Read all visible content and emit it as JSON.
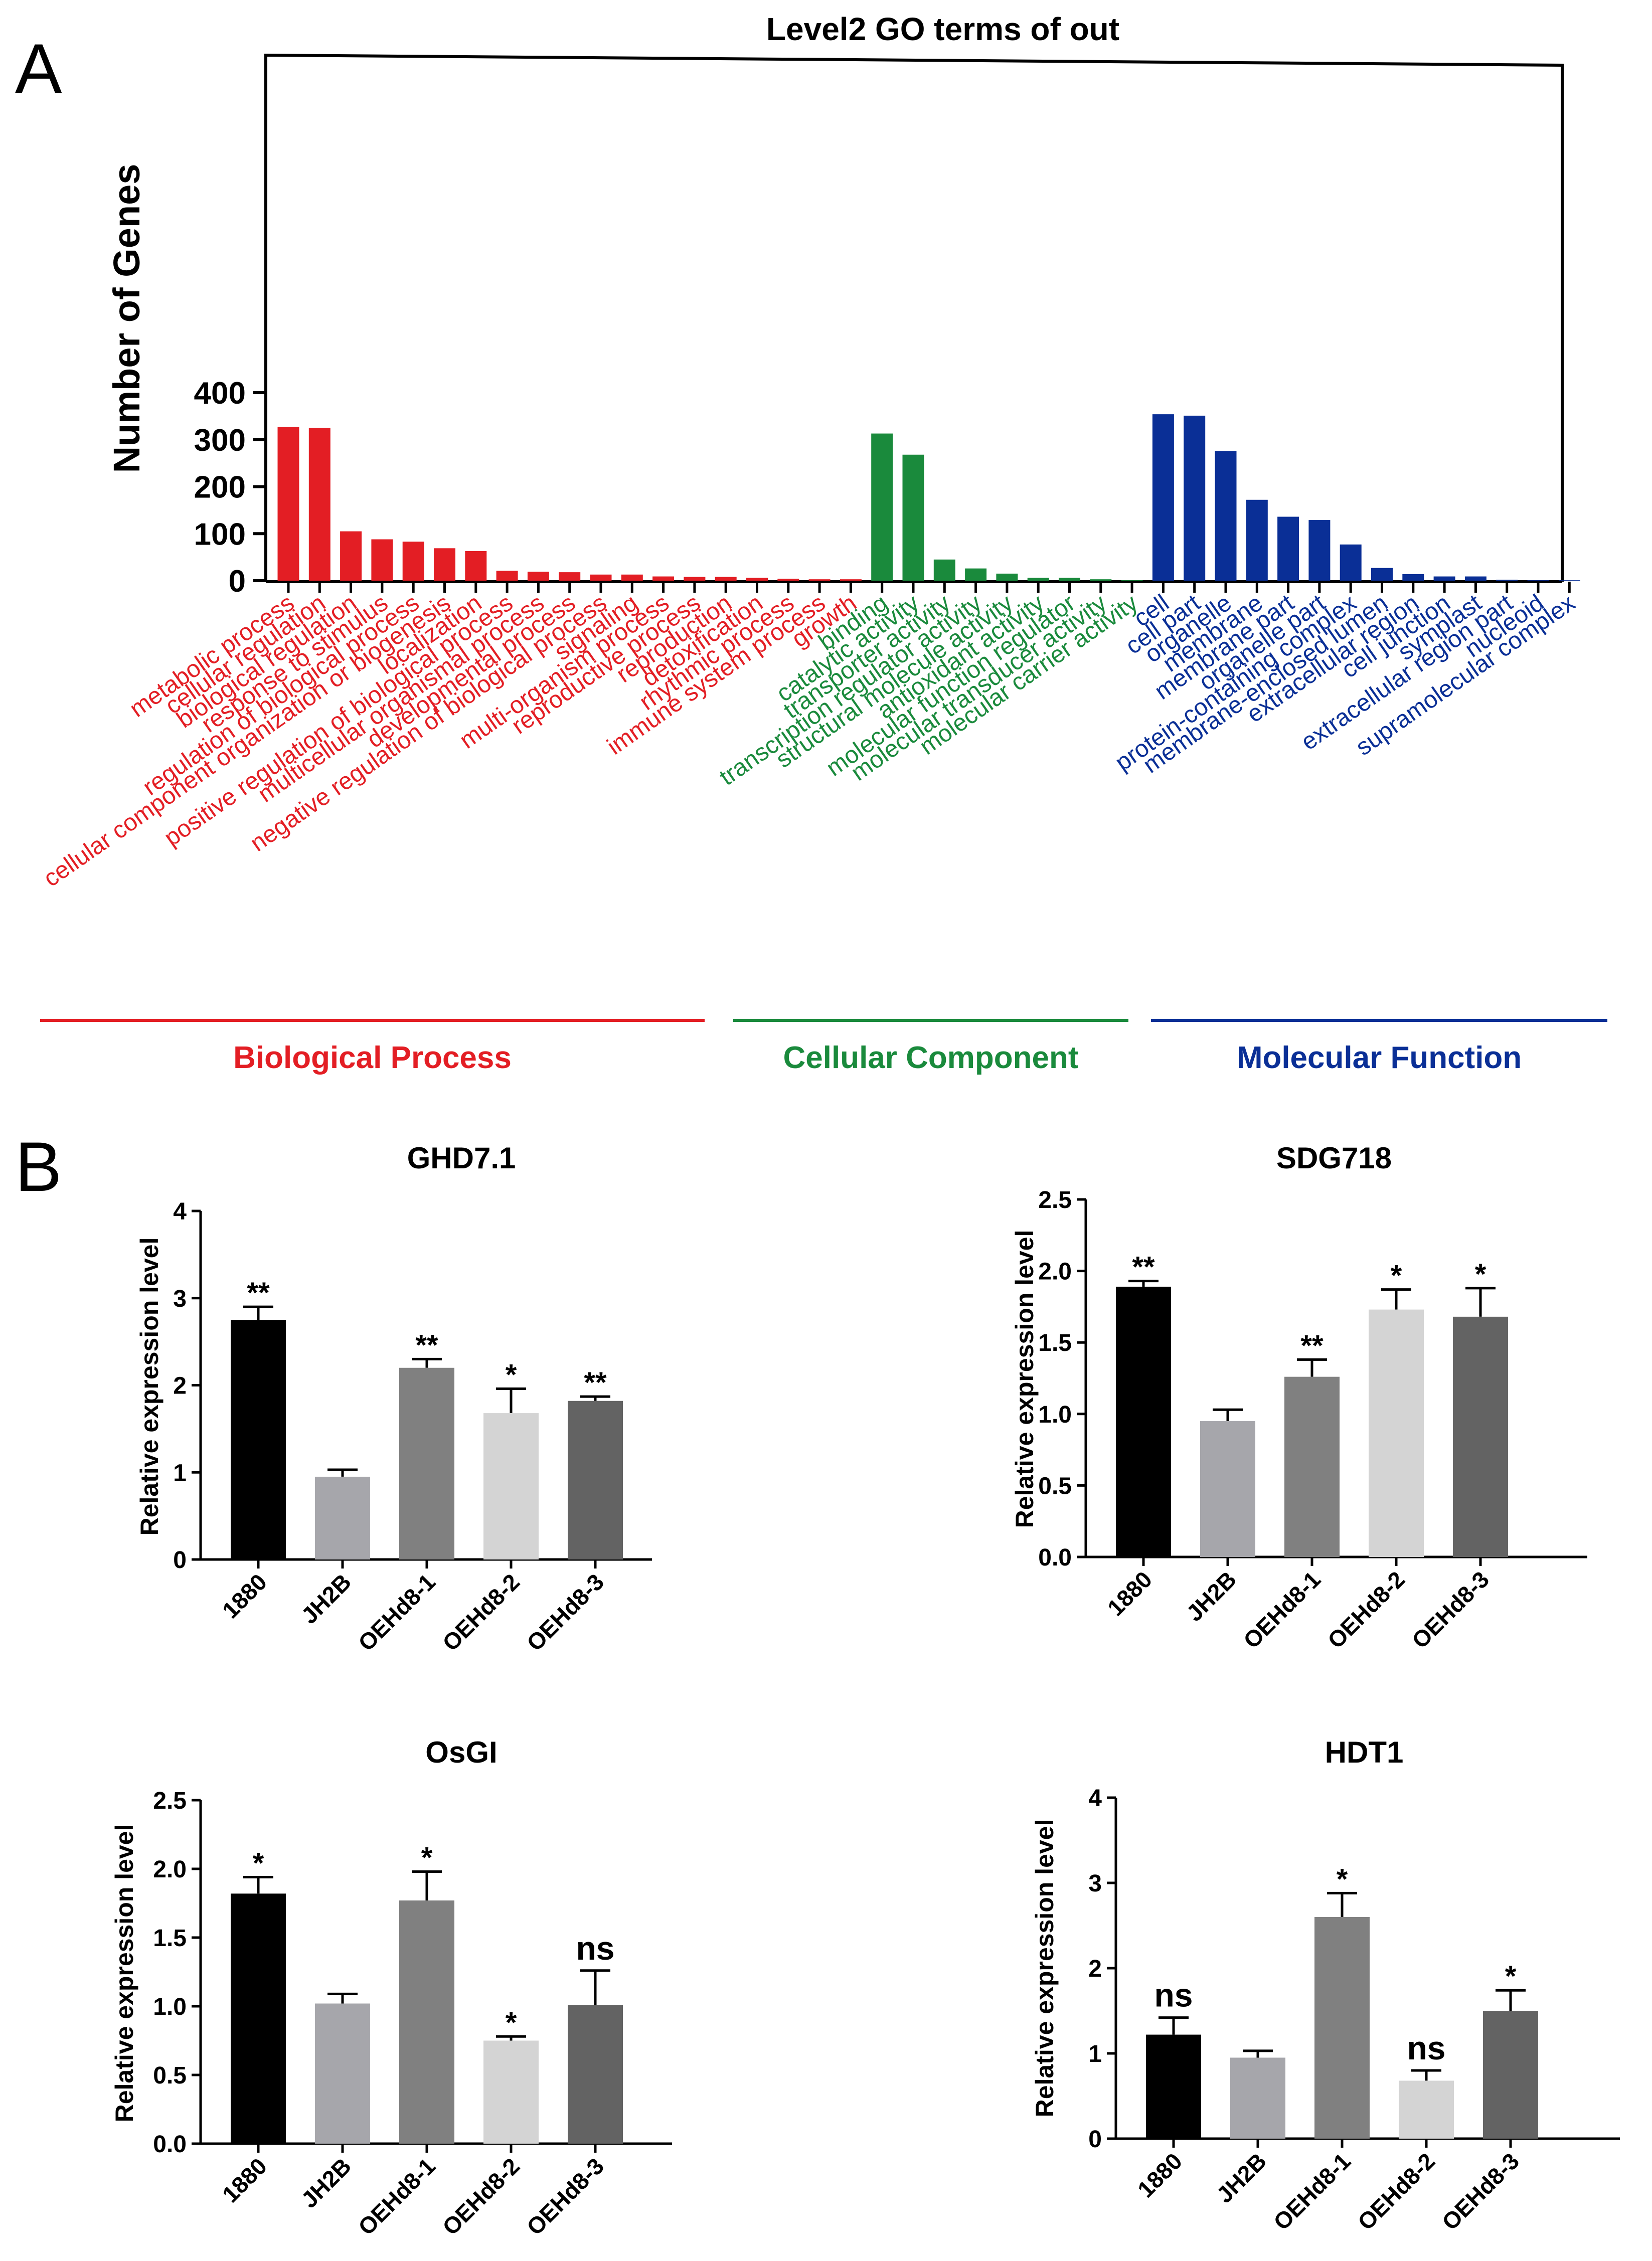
{
  "panel_labels": {
    "a": "A",
    "b": "B"
  },
  "colors": {
    "biological": "#e31e24",
    "cellular": "#1a8a3c",
    "molecular": "#0a2f96",
    "bars_b": [
      "#000000",
      "#a6a6ab",
      "#808080",
      "#d4d4d4",
      "#636363"
    ]
  },
  "chart_data": [
    {
      "type": "bar",
      "title": "Level2 GO terms of out",
      "xlabel": "",
      "ylabel": "Number of Genes",
      "ylim": [
        0,
        450
      ],
      "yticks": [
        0,
        100,
        200,
        300,
        400
      ],
      "grid": false,
      "categories": [
        "metabolic process",
        "cellular regulation",
        "biological regulation",
        "response to stimulus",
        "regulation of biological process",
        "cellular component organization or biogenesis",
        "localization",
        "positive regulation of biological process",
        "multicellular organismal process",
        "developmental process",
        "negative regulation of biological process",
        "signaling",
        "multi-organism process",
        "reproductive process",
        "reproduction",
        "detoxification",
        "rhythmic process",
        "immune system process",
        "growth",
        "binding",
        "catalytic activity",
        "transporter activity",
        "transcription regulator activity",
        "structural molecule activity",
        "antioxidant activity",
        "molecular function regulator",
        "molecular transducer activity",
        "molecular carrier activity",
        "cell",
        "cell part",
        "organelle",
        "membrane",
        "membrane part",
        "organelle part",
        "protein-containing complex",
        "membrane-enclosed lumen",
        "extracellular region",
        "cell junction",
        "symplast",
        "extracellular region part",
        "nucleoid",
        "supramolecular complex"
      ],
      "values": [
        327,
        325,
        105,
        88,
        83,
        69,
        63,
        21,
        19,
        18,
        13,
        13,
        9,
        8,
        8,
        6,
        4,
        3,
        3,
        313,
        268,
        45,
        26,
        15,
        6,
        6,
        3,
        1,
        354,
        351,
        276,
        172,
        136,
        129,
        77,
        27,
        14,
        9,
        9,
        2,
        1,
        1
      ],
      "groups": [
        {
          "name": "Biological Process",
          "start": 0,
          "end": 18,
          "color": "#e31e24"
        },
        {
          "name": "Cellular Component",
          "start": 19,
          "end": 27,
          "color": "#1a8a3c"
        },
        {
          "name": "Molecular Function",
          "start": 28,
          "end": 41,
          "color": "#0a2f96"
        }
      ]
    },
    {
      "type": "bar",
      "title": "GHD7.1",
      "ylabel": "Relative expression level",
      "ylim": [
        0,
        4
      ],
      "yticks": [
        "0",
        "1",
        "2",
        "3",
        "4"
      ],
      "categories": [
        "1880",
        "JH2B",
        "OEHd8-1",
        "OEHd8-2",
        "OEHd8-3"
      ],
      "values": [
        2.75,
        0.95,
        2.2,
        1.68,
        1.82
      ],
      "errors": [
        0.15,
        0.08,
        0.1,
        0.28,
        0.05
      ],
      "annotations": [
        "**",
        "",
        "**",
        "*",
        "**"
      ]
    },
    {
      "type": "bar",
      "title": "SDG718",
      "ylabel": "Relative expression level",
      "ylim": [
        0,
        2.5
      ],
      "yticks": [
        "0.0",
        "0.5",
        "1.0",
        "1.5",
        "2.0",
        "2.5"
      ],
      "categories": [
        "1880",
        "JH2B",
        "OEHd8-1",
        "OEHd8-2",
        "OEHd8-3"
      ],
      "values": [
        1.89,
        0.95,
        1.26,
        1.73,
        1.68
      ],
      "errors": [
        0.04,
        0.08,
        0.12,
        0.14,
        0.2
      ],
      "annotations": [
        "**",
        "",
        "**",
        "*",
        "*"
      ]
    },
    {
      "type": "bar",
      "title": "OsGI",
      "ylabel": "Relative expression level",
      "ylim": [
        0,
        2.5
      ],
      "yticks": [
        "0.0",
        "0.5",
        "1.0",
        "1.5",
        "2.0",
        "2.5"
      ],
      "categories": [
        "1880",
        "JH2B",
        "OEHd8-1",
        "OEHd8-2",
        "OEHd8-3"
      ],
      "values": [
        1.82,
        1.02,
        1.77,
        0.75,
        1.01
      ],
      "errors": [
        0.12,
        0.07,
        0.21,
        0.03,
        0.25
      ],
      "annotations": [
        "*",
        "",
        "*",
        "*",
        "ns"
      ]
    },
    {
      "type": "bar",
      "title": "HDT1",
      "ylabel": "Relative expression level",
      "ylim": [
        0,
        4
      ],
      "yticks": [
        "0",
        "1",
        "2",
        "3",
        "4"
      ],
      "categories": [
        "1880",
        "JH2B",
        "OEHd8-1",
        "OEHd8-2",
        "OEHd8-3"
      ],
      "values": [
        1.22,
        0.95,
        2.6,
        0.68,
        1.5
      ],
      "errors": [
        0.2,
        0.08,
        0.28,
        0.12,
        0.24
      ],
      "annotations": [
        "ns",
        "",
        "*",
        "ns",
        "*"
      ]
    }
  ]
}
